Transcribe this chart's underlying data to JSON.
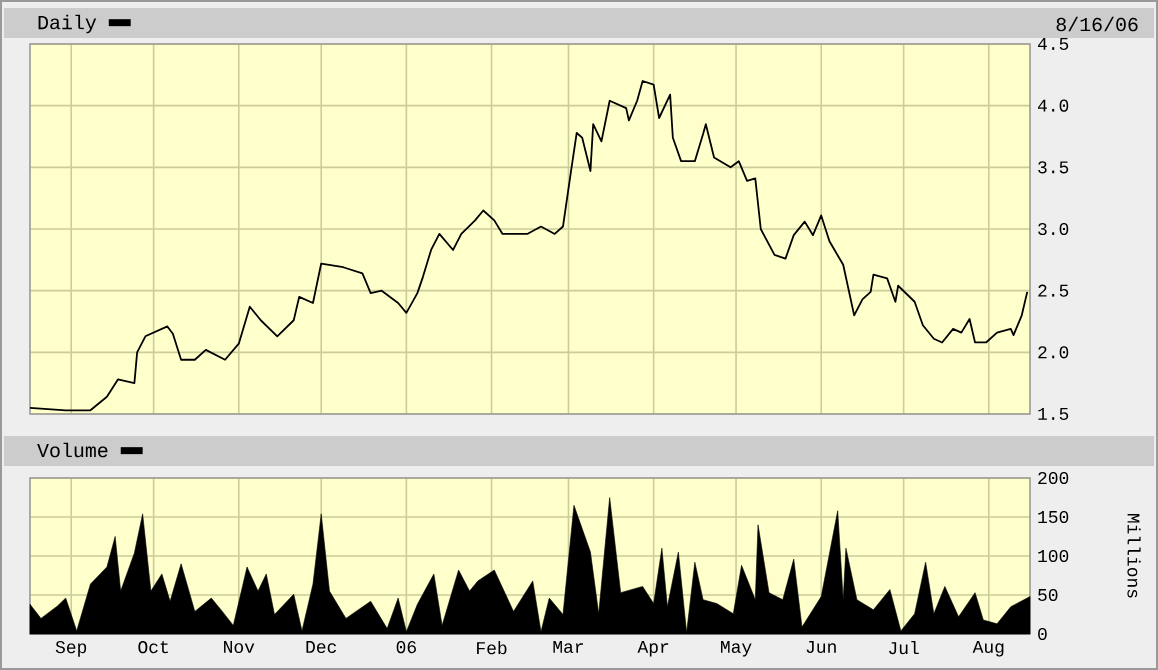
{
  "chart_data": [
    {
      "type": "line",
      "title": "Daily",
      "annotations": [
        "8/16/06"
      ],
      "color": "#000000",
      "x": [
        "2005-08-17",
        "2005-08-30",
        "2005-09-08",
        "2005-09-14",
        "2005-09-18",
        "2005-09-24",
        "2005-09-25",
        "2005-09-28",
        "2005-10-06",
        "2005-10-08",
        "2005-10-11",
        "2005-10-16",
        "2005-10-20",
        "2005-10-27",
        "2005-11-01",
        "2005-11-05",
        "2005-11-09",
        "2005-11-15",
        "2005-11-21",
        "2005-11-23",
        "2005-11-28",
        "2005-12-01",
        "2005-12-09",
        "2005-12-16",
        "2005-12-19",
        "2005-12-23",
        "2005-12-29",
        "2006-01-01",
        "2006-01-05",
        "2006-01-07",
        "2006-01-10",
        "2006-01-13",
        "2006-01-18",
        "2006-01-21",
        "2006-01-26",
        "2006-01-29",
        "2006-02-02",
        "2006-02-05",
        "2006-02-14",
        "2006-02-19",
        "2006-02-24",
        "2006-02-27",
        "2006-03-02",
        "2006-03-04",
        "2006-03-06",
        "2006-03-09",
        "2006-03-10",
        "2006-03-13",
        "2006-03-16",
        "2006-03-22",
        "2006-03-23",
        "2006-03-26",
        "2006-03-28",
        "2006-04-01",
        "2006-04-03",
        "2006-04-07",
        "2006-04-08",
        "2006-04-11",
        "2006-04-16",
        "2006-04-19",
        "2006-04-20",
        "2006-04-23",
        "2006-04-29",
        "2006-05-02",
        "2006-05-05",
        "2006-05-08",
        "2006-05-10",
        "2006-05-15",
        "2006-05-19",
        "2006-05-22",
        "2006-05-26",
        "2006-05-29",
        "2006-06-01",
        "2006-06-04",
        "2006-06-09",
        "2006-06-13",
        "2006-06-16",
        "2006-06-19",
        "2006-06-20",
        "2006-06-25",
        "2006-06-28",
        "2006-06-29",
        "2006-07-05",
        "2006-07-08",
        "2006-07-12",
        "2006-07-15",
        "2006-07-19",
        "2006-07-22",
        "2006-07-25",
        "2006-07-27",
        "2006-07-31",
        "2006-08-04",
        "2006-08-09",
        "2006-08-10",
        "2006-08-13",
        "2006-08-15"
      ],
      "values": [
        1.55,
        1.53,
        1.53,
        1.64,
        1.78,
        1.75,
        2.0,
        2.13,
        2.21,
        2.15,
        1.94,
        1.94,
        2.02,
        1.94,
        2.07,
        2.37,
        2.26,
        2.13,
        2.26,
        2.45,
        2.4,
        2.72,
        2.69,
        2.64,
        2.48,
        2.5,
        2.4,
        2.32,
        2.48,
        2.61,
        2.83,
        2.96,
        2.83,
        2.96,
        3.07,
        3.15,
        3.07,
        2.96,
        2.96,
        3.02,
        2.96,
        3.02,
        3.48,
        3.78,
        3.74,
        3.47,
        3.85,
        3.71,
        4.04,
        3.98,
        3.88,
        4.04,
        4.2,
        4.17,
        3.9,
        4.09,
        3.74,
        3.55,
        3.55,
        3.77,
        3.85,
        3.58,
        3.5,
        3.55,
        3.39,
        3.41,
        3.0,
        2.79,
        2.76,
        2.95,
        3.06,
        2.95,
        3.11,
        2.9,
        2.71,
        2.3,
        2.43,
        2.49,
        2.63,
        2.6,
        2.41,
        2.54,
        2.41,
        2.22,
        2.11,
        2.08,
        2.19,
        2.16,
        2.27,
        2.08,
        2.08,
        2.16,
        2.19,
        2.14,
        2.3,
        2.49
      ],
      "xlim": [
        "2005-08-17",
        "2006-08-16"
      ],
      "xticks": [
        {
          "value": "2005-09-01",
          "label": null
        },
        {
          "value": "2005-10-01",
          "label": null
        },
        {
          "value": "2005-11-01",
          "label": null
        },
        {
          "value": "2005-12-01",
          "label": null
        },
        {
          "value": "2006-01-01",
          "label": null
        },
        {
          "value": "2006-02-01",
          "label": null
        },
        {
          "value": "2006-03-01",
          "label": null
        },
        {
          "value": "2006-04-01",
          "label": null
        },
        {
          "value": "2006-05-01",
          "label": null
        },
        {
          "value": "2006-06-01",
          "label": null
        },
        {
          "value": "2006-07-01",
          "label": null
        },
        {
          "value": "2006-08-01",
          "label": null
        }
      ],
      "ylim": [
        1.5,
        4.5
      ],
      "yticks": [
        1.5,
        {
          "value": 2,
          "label": "2.0"
        },
        2.5,
        {
          "value": 3,
          "label": "3.0"
        },
        3.5,
        {
          "value": 4,
          "label": "4.0"
        },
        4.5
      ],
      "grid": true,
      "tick_labels": "y"
    },
    {
      "type": "area",
      "title": "Volume",
      "ylabel": "Millions",
      "color": "#000000",
      "x": [
        "2005-08-17",
        "2005-08-21",
        "2005-08-27",
        "2005-08-30",
        "2005-09-03",
        "2005-09-08",
        "2005-09-14",
        "2005-09-17",
        "2005-09-19",
        "2005-09-24",
        "2005-09-27",
        "2005-09-30",
        "2005-10-04",
        "2005-10-07",
        "2005-10-11",
        "2005-10-16",
        "2005-10-22",
        "2005-10-26",
        "2005-10-30",
        "2005-11-04",
        "2005-11-08",
        "2005-11-11",
        "2005-11-14",
        "2005-11-21",
        "2005-11-24",
        "2005-11-28",
        "2005-12-01",
        "2005-12-04",
        "2005-12-10",
        "2005-12-19",
        "2005-12-25",
        "2005-12-29",
        "2006-01-01",
        "2006-01-05",
        "2006-01-11",
        "2006-01-14",
        "2006-01-20",
        "2006-01-24",
        "2006-01-27",
        "2006-02-02",
        "2006-02-09",
        "2006-02-16",
        "2006-02-19",
        "2006-02-22",
        "2006-02-27",
        "2006-03-03",
        "2006-03-09",
        "2006-03-12",
        "2006-03-16",
        "2006-03-20",
        "2006-03-28",
        "2006-04-01",
        "2006-04-04",
        "2006-04-06",
        "2006-04-10",
        "2006-04-13",
        "2006-04-16",
        "2006-04-19",
        "2006-04-24",
        "2006-04-30",
        "2006-05-03",
        "2006-05-08",
        "2006-05-09",
        "2006-05-13",
        "2006-05-18",
        "2006-05-22",
        "2006-05-25",
        "2006-06-01",
        "2006-06-07",
        "2006-06-09",
        "2006-06-10",
        "2006-06-14",
        "2006-06-20",
        "2006-06-26",
        "2006-06-30",
        "2006-07-05",
        "2006-07-09",
        "2006-07-12",
        "2006-07-16",
        "2006-07-21",
        "2006-07-27",
        "2006-07-30",
        "2006-08-04",
        "2006-08-09",
        "2006-08-16"
      ],
      "values": [
        38,
        20,
        36,
        46,
        4,
        64,
        86,
        125,
        55,
        104,
        154,
        55,
        77,
        42,
        90,
        29,
        46,
        29,
        11,
        86,
        55,
        77,
        25,
        51,
        4,
        64,
        154,
        55,
        20,
        42,
        7,
        46,
        3,
        38,
        77,
        11,
        82,
        55,
        68,
        82,
        29,
        68,
        3,
        46,
        25,
        165,
        105,
        26,
        175,
        53,
        61,
        39,
        110,
        35,
        105,
        2,
        92,
        44,
        39,
        26,
        88,
        44,
        140,
        53,
        44,
        96,
        9,
        48,
        158,
        44,
        110,
        44,
        31,
        57,
        4,
        26,
        92,
        26,
        61,
        22,
        53,
        18,
        13,
        35,
        48
      ],
      "xlim": [
        "2005-08-17",
        "2006-08-16"
      ],
      "xticks": [
        {
          "value": "2005-09-01",
          "label": "Sep"
        },
        {
          "value": "2005-10-01",
          "label": "Oct"
        },
        {
          "value": "2005-11-01",
          "label": "Nov"
        },
        {
          "value": "2005-12-01",
          "label": "Dec"
        },
        {
          "value": "2006-01-01",
          "label": "06"
        },
        {
          "value": "2006-02-01",
          "label": "Feb"
        },
        {
          "value": "2006-03-01",
          "label": "Mar"
        },
        {
          "value": "2006-04-01",
          "label": "Apr"
        },
        {
          "value": "2006-05-01",
          "label": "May"
        },
        {
          "value": "2006-06-01",
          "label": "Jun"
        },
        {
          "value": "2006-07-01",
          "label": "Jul"
        },
        {
          "value": "2006-08-01",
          "label": "Aug"
        }
      ],
      "ylim": [
        0,
        200
      ],
      "yticks": [
        0,
        50,
        100,
        150,
        200
      ],
      "grid": true
    }
  ]
}
